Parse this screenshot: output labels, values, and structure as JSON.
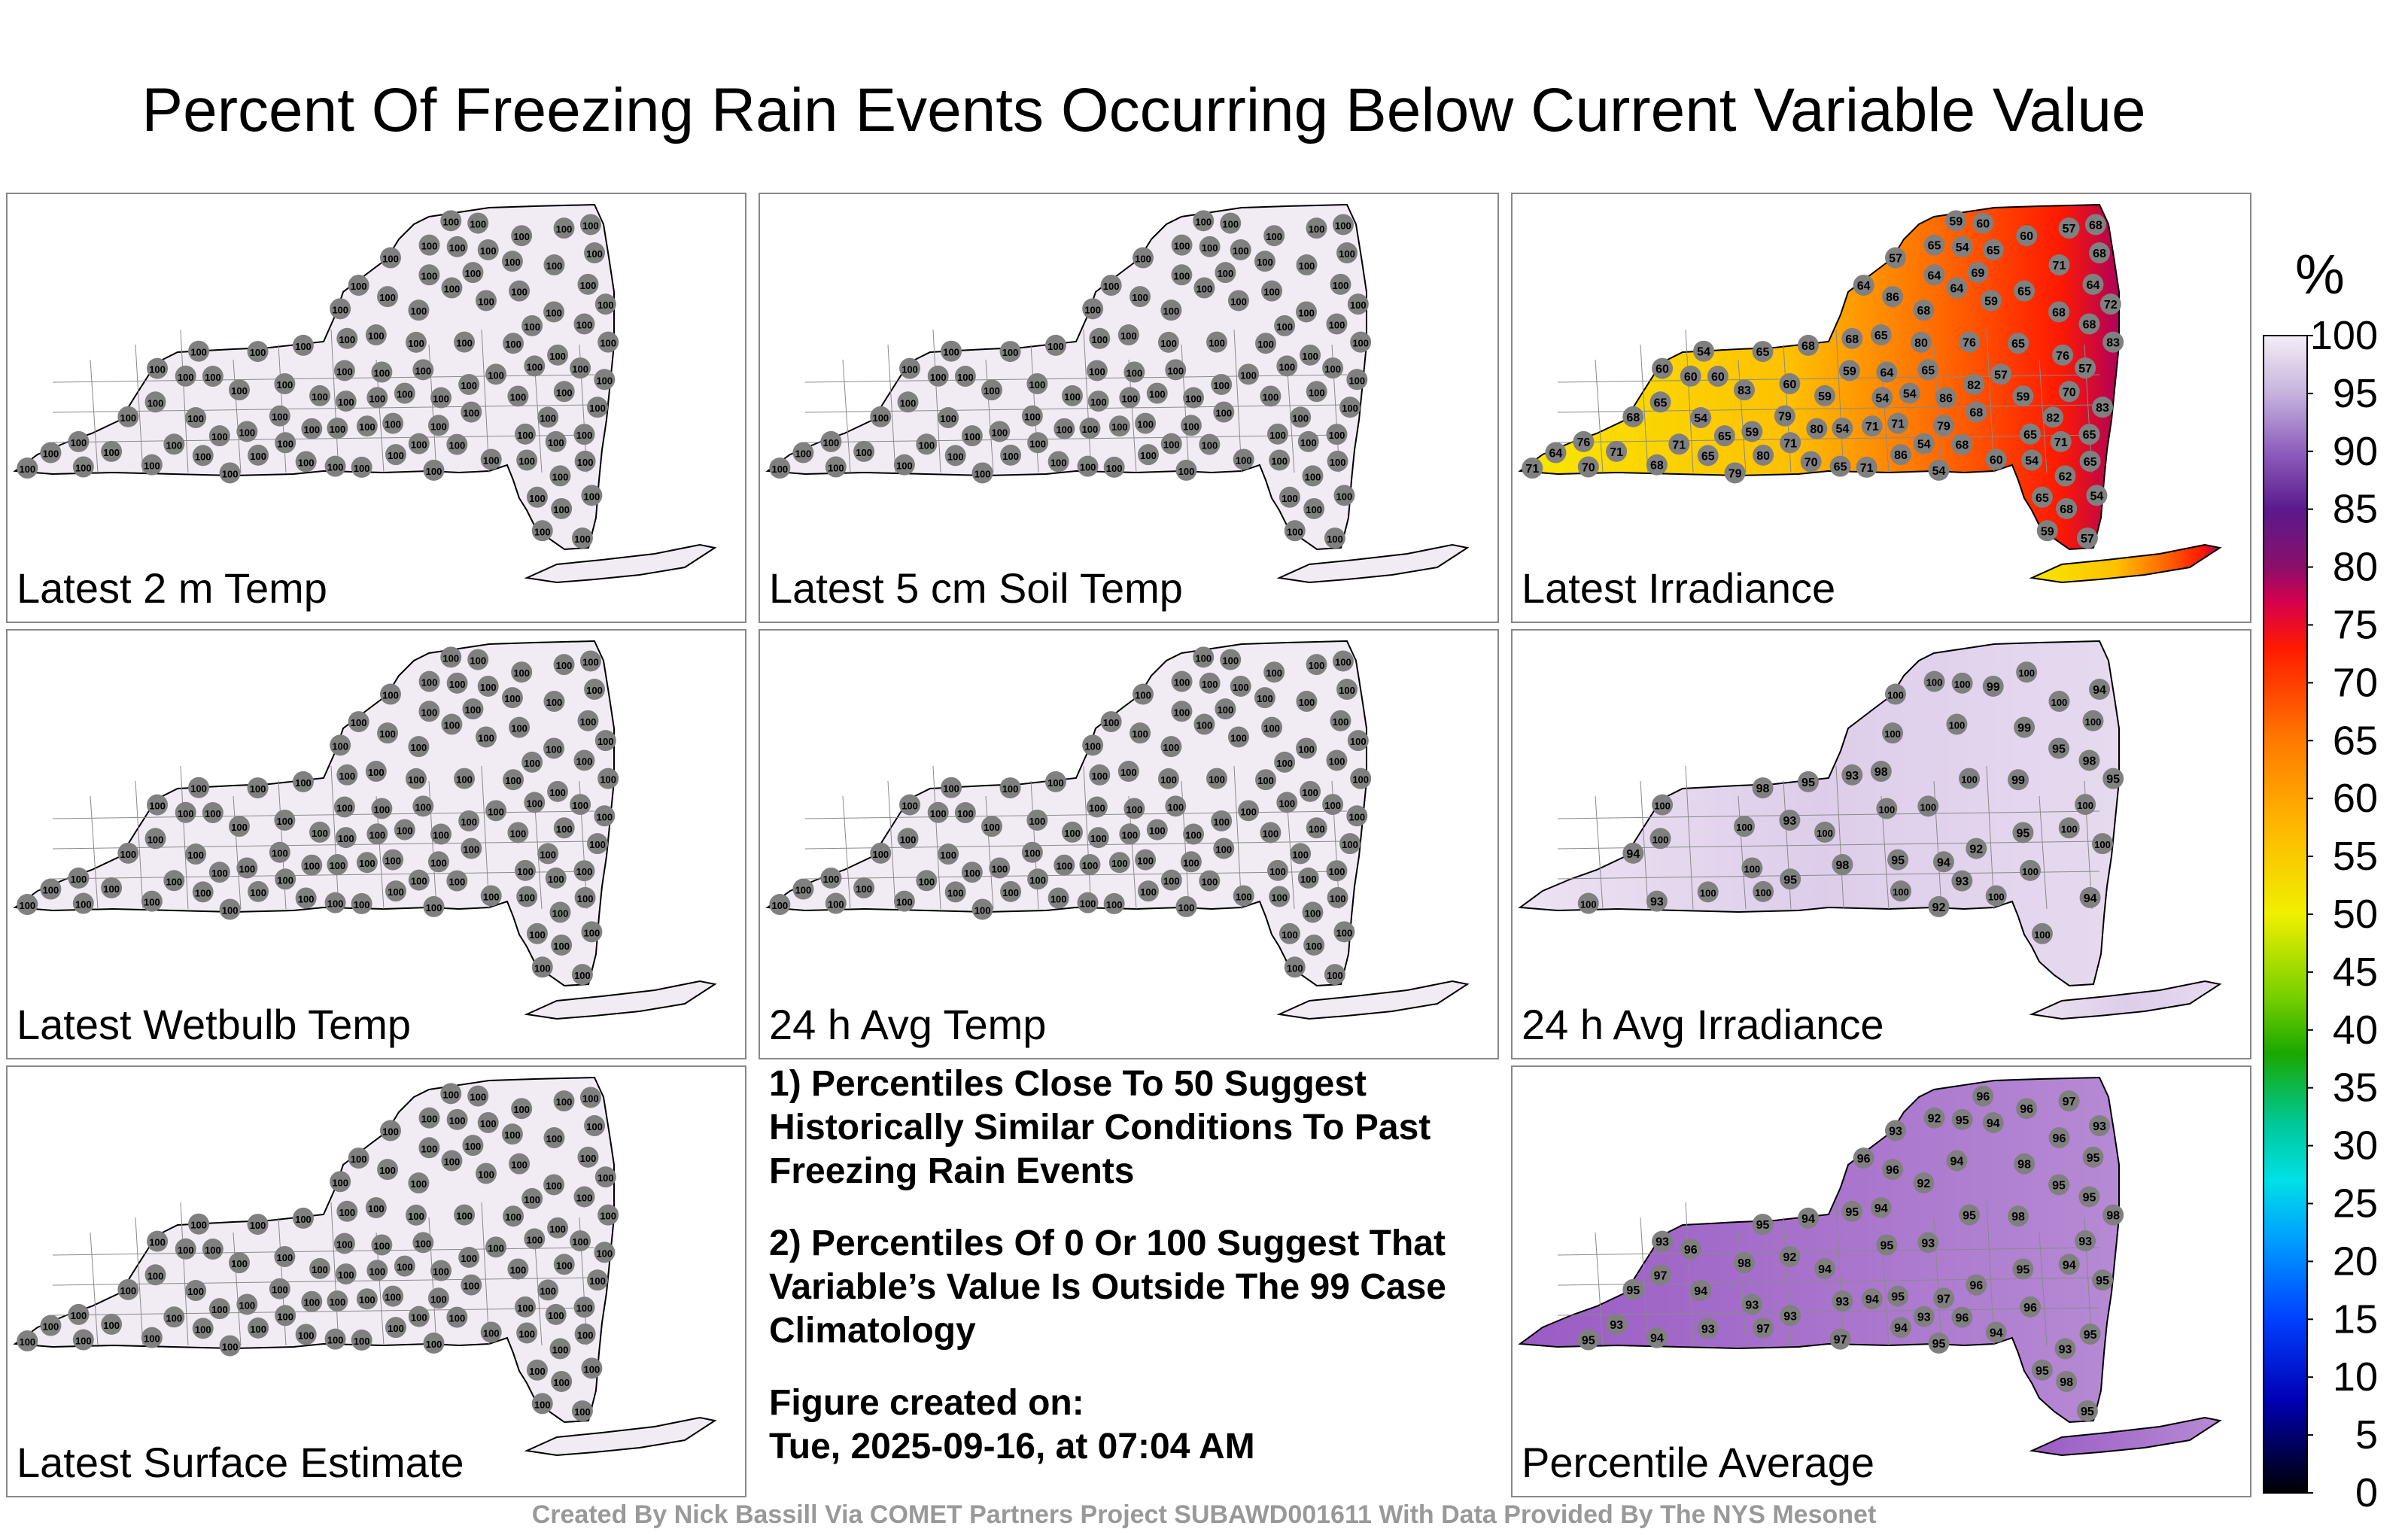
{
  "title": "Percent Of Freezing Rain Events Occurring Below Current Variable Value",
  "panels": [
    {
      "id": "latest-2m-temp",
      "label": "Latest 2 m Temp",
      "mode": "uniform",
      "value": 100
    },
    {
      "id": "latest-5cm-soil-temp",
      "label": "Latest 5 cm Soil Temp",
      "mode": "uniform",
      "value": 100
    },
    {
      "id": "latest-irradiance",
      "label": "Latest Irradiance",
      "mode": "gradient",
      "west": 54,
      "east": 80,
      "values": [
        71,
        83,
        86,
        70,
        68,
        79,
        83,
        71,
        68,
        65,
        65,
        68,
        65,
        86,
        68,
        65,
        68,
        65,
        60,
        54,
        65,
        80,
        83,
        68,
        64,
        65,
        65,
        71,
        70,
        65,
        54,
        57,
        59,
        60,
        65,
        68,
        76,
        68,
        65,
        59,
        68,
        54,
        57,
        59,
        60,
        64,
        60,
        65,
        64,
        71,
        68,
        62,
        54,
        57,
        64,
        65,
        68,
        60,
        71,
        54,
        57,
        60,
        64,
        57,
        59,
        64,
        65,
        54,
        54,
        54,
        54,
        59,
        59,
        60,
        54,
        59,
        76,
        82,
        71,
        70,
        72,
        65,
        71,
        80,
        82,
        69,
        68,
        79,
        76,
        71,
        86,
        71,
        79,
        80
      ]
    },
    {
      "id": "latest-wetbulb-temp",
      "label": "Latest Wetbulb Temp",
      "mode": "uniform",
      "value": 100
    },
    {
      "id": "24h-avg-temp",
      "label": "24 h Avg Temp",
      "mode": "uniform",
      "value": 100
    },
    {
      "id": "24h-avg-irradiance",
      "label": "24 h Avg Irradiance",
      "mode": "mixed",
      "values": [
        100,
        100,
        100,
        100,
        93,
        94,
        95,
        95,
        95,
        98,
        100,
        93,
        100,
        100,
        98,
        99,
        94,
        99,
        100,
        100,
        94,
        100,
        100,
        95,
        100,
        100,
        99,
        95,
        100,
        98,
        92,
        100,
        95,
        100,
        100,
        94,
        100,
        93,
        100,
        100,
        92,
        98,
        100,
        100,
        100,
        100,
        93,
        100,
        100
      ]
    },
    {
      "id": "percentile-average",
      "label": "Percentile Average",
      "mode": "avg",
      "values": [
        96,
        98,
        96,
        95,
        95,
        97,
        98,
        95,
        95,
        95,
        92,
        94,
        95,
        94,
        95,
        98,
        93,
        94,
        93,
        95,
        95,
        97,
        95,
        94,
        95,
        96,
        98,
        93,
        94,
        94,
        95,
        93,
        95,
        96,
        93,
        95,
        95,
        96,
        97,
        94,
        96,
        93,
        93,
        93,
        94,
        95,
        92,
        93,
        94,
        93,
        92,
        93,
        94,
        95,
        96,
        97,
        98,
        96,
        94,
        93,
        97,
        96
      ]
    }
  ],
  "notes": [
    "1) Percentiles Close To 50 Suggest Historically Similar Conditions To Past Freezing Rain Events",
    "2) Percentiles Of 0 Or 100 Suggest That Variable’s Value Is Outside The 99 Case Climatology"
  ],
  "created_label": "Figure created on:",
  "created_date": "Tue, 2025-09-16, at 07:04 AM",
  "footer": "Created By Nick Bassill Via COMET Partners Project SUBAWD001611 With Data Provided By The NYS Mesonet",
  "chart_data": {
    "type": "map-station-percentiles",
    "colorbar": {
      "unit": "%",
      "ticks": [
        100,
        95,
        90,
        85,
        80,
        75,
        70,
        65,
        60,
        55,
        50,
        45,
        40,
        35,
        30,
        25,
        20,
        15,
        10,
        5,
        0
      ],
      "range": [
        0,
        100
      ]
    },
    "panels": [
      "Latest 2 m Temp",
      "Latest 5 cm Soil Temp",
      "Latest Irradiance",
      "Latest Wetbulb Temp",
      "24 h Avg Temp",
      "24 h Avg Irradiance",
      "Latest Surface Estimate",
      "Percentile Average"
    ]
  },
  "extra_panel": {
    "id": "latest-surface-estimate",
    "label": "Latest Surface Estimate",
    "mode": "uniform",
    "value": 100
  },
  "colors": {
    "marker": "#808080",
    "background": "#f1ecf4",
    "border": "#000000",
    "county": "#9a9a9a"
  }
}
